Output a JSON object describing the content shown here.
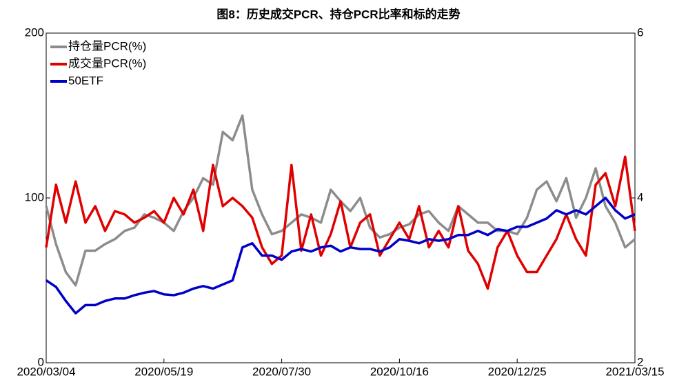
{
  "chart_data": {
    "type": "line",
    "title": "图8：历史成交PCR、持仓PCR比率和标的走势",
    "categories": [
      "2020/03/04",
      null,
      null,
      null,
      null,
      null,
      null,
      null,
      null,
      null,
      null,
      null,
      "2020/05/19",
      null,
      null,
      null,
      null,
      null,
      null,
      null,
      null,
      null,
      null,
      null,
      "2020/07/30",
      null,
      null,
      null,
      null,
      null,
      null,
      null,
      null,
      null,
      null,
      null,
      "2020/10/16",
      null,
      null,
      null,
      null,
      null,
      null,
      null,
      null,
      null,
      null,
      null,
      "2020/12/25",
      null,
      null,
      null,
      null,
      null,
      null,
      null,
      null,
      null,
      null,
      null,
      "2021/03/15"
    ],
    "ylim": [
      0,
      200
    ],
    "yticks": [
      0,
      100,
      200
    ],
    "y2lim": [
      2,
      6
    ],
    "y2ticks": [
      2,
      4,
      6
    ],
    "legend": "upper left",
    "series": [
      {
        "name": "持仓量PCR(%)",
        "color": "#8c8c8c",
        "values": [
          95,
          72,
          55,
          47,
          68,
          68,
          72,
          75,
          80,
          82,
          90,
          88,
          85,
          80,
          92,
          100,
          112,
          108,
          140,
          135,
          150,
          105,
          90,
          78,
          80,
          85,
          90,
          88,
          85,
          105,
          98,
          92,
          100,
          82,
          76,
          78,
          82,
          84,
          90,
          92,
          85,
          80,
          95,
          90,
          85,
          85,
          80,
          80,
          78,
          88,
          105,
          110,
          98,
          112,
          88,
          100,
          118,
          95,
          85,
          70,
          75
        ]
      },
      {
        "name": "成交量PCR(%)",
        "color": "#e00000",
        "values": [
          70,
          108,
          85,
          110,
          85,
          95,
          80,
          92,
          90,
          85,
          88,
          92,
          85,
          100,
          90,
          105,
          80,
          120,
          95,
          100,
          95,
          88,
          70,
          60,
          65,
          120,
          68,
          90,
          65,
          78,
          98,
          70,
          85,
          90,
          65,
          75,
          85,
          75,
          95,
          70,
          80,
          70,
          95,
          68,
          60,
          45,
          70,
          80,
          65,
          55,
          55,
          65,
          75,
          90,
          75,
          65,
          108,
          115,
          95,
          125,
          80
        ]
      },
      {
        "name": "50ETF",
        "color": "#0000c8",
        "axis": "y2",
        "values": [
          3.0,
          2.92,
          2.75,
          2.6,
          2.7,
          2.7,
          2.75,
          2.78,
          2.78,
          2.82,
          2.85,
          2.87,
          2.83,
          2.82,
          2.85,
          2.9,
          2.93,
          2.9,
          2.95,
          3.0,
          3.4,
          3.45,
          3.3,
          3.3,
          3.25,
          3.35,
          3.38,
          3.35,
          3.4,
          3.42,
          3.35,
          3.4,
          3.38,
          3.38,
          3.35,
          3.4,
          3.5,
          3.48,
          3.45,
          3.5,
          3.48,
          3.5,
          3.55,
          3.55,
          3.6,
          3.55,
          3.62,
          3.6,
          3.65,
          3.65,
          3.7,
          3.75,
          3.85,
          3.8,
          3.85,
          3.8,
          3.9,
          4.0,
          3.85,
          3.75,
          3.8
        ]
      }
    ]
  }
}
